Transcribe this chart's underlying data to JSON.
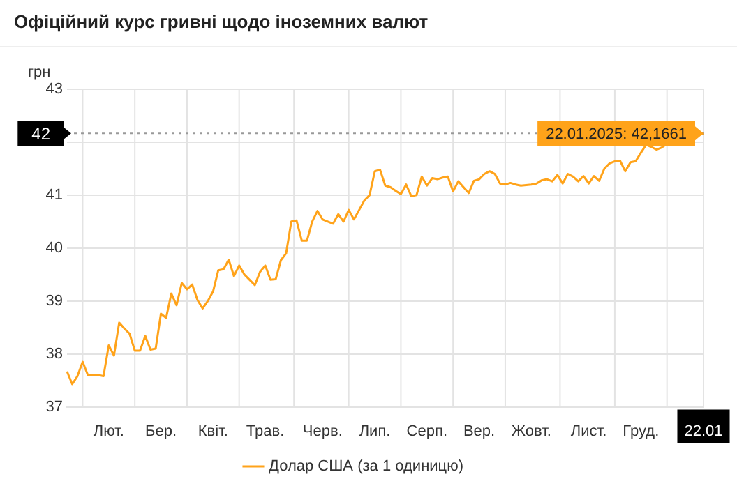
{
  "chart_data": {
    "type": "line",
    "title": "Офіційний курс гривні щодо іноземних валют",
    "ylabel": "грн",
    "categories": [
      null,
      null,
      null,
      null,
      null,
      null,
      null,
      null,
      "Лют.",
      null,
      null,
      null,
      null,
      null,
      null,
      null,
      null,
      null,
      "Бер.",
      null,
      null,
      null,
      null,
      null,
      null,
      null,
      null,
      null,
      "Квіт.",
      null,
      null,
      null,
      null,
      null,
      null,
      null,
      null,
      null,
      "Трав.",
      null,
      null,
      null,
      null,
      null,
      null,
      null,
      null,
      null,
      null,
      "Черв.",
      null,
      null,
      null,
      null,
      null,
      null,
      null,
      null,
      null,
      "Лип.",
      null,
      null,
      null,
      null,
      null,
      null,
      null,
      null,
      null,
      "Серп.",
      null,
      null,
      null,
      null,
      null,
      null,
      null,
      null,
      null,
      "Вер.",
      null,
      null,
      null,
      null,
      null,
      null,
      null,
      null,
      null,
      "Жовт.",
      null,
      null,
      null,
      null,
      null,
      null,
      null,
      null,
      null,
      null,
      "Лист.",
      null,
      null,
      null,
      null,
      null,
      null,
      null,
      null,
      null,
      "Груд.",
      null,
      null,
      null,
      null,
      null,
      null,
      null,
      null,
      null,
      null,
      null,
      "22.01"
    ],
    "series": [
      {
        "name": "Долар США (за 1 одиницю)",
        "color": "#ffa31a",
        "values": [
          37.67,
          37.43,
          37.58,
          37.85,
          37.6,
          37.6,
          37.6,
          37.58,
          38.16,
          37.97,
          38.59,
          38.48,
          38.38,
          38.06,
          38.06,
          38.34,
          38.08,
          38.1,
          38.76,
          38.68,
          39.14,
          38.92,
          39.34,
          39.22,
          39.31,
          39.02,
          38.86,
          39.0,
          39.18,
          39.58,
          39.6,
          39.78,
          39.47,
          39.67,
          39.5,
          39.4,
          39.3,
          39.55,
          39.67,
          39.4,
          39.41,
          39.77,
          39.9,
          40.5,
          40.52,
          40.14,
          40.14,
          40.5,
          40.7,
          40.54,
          40.5,
          40.46,
          40.64,
          40.5,
          40.72,
          40.54,
          40.72,
          40.9,
          41.0,
          41.45,
          41.48,
          41.18,
          41.15,
          41.08,
          41.02,
          41.2,
          40.98,
          41.0,
          41.35,
          41.18,
          41.32,
          41.3,
          41.33,
          41.35,
          41.07,
          41.26,
          41.15,
          41.04,
          41.27,
          41.3,
          41.4,
          41.45,
          41.4,
          41.22,
          41.2,
          41.23,
          41.2,
          41.18,
          41.19,
          41.2,
          41.22,
          41.28,
          41.3,
          41.26,
          41.38,
          41.22,
          41.4,
          41.35,
          41.26,
          41.36,
          41.22,
          41.36,
          41.27,
          41.5,
          41.6,
          41.64,
          41.65,
          41.45,
          41.62,
          41.64,
          41.8,
          41.95,
          41.91,
          41.86,
          41.9,
          41.97,
          null,
          null,
          null,
          null,
          null,
          null,
          42.1661
        ]
      }
    ],
    "ylim": [
      37,
      43
    ],
    "yticks": [
      37,
      38,
      39,
      40,
      41,
      42,
      43
    ],
    "ref_lines": [
      {
        "axis": "y",
        "value": 42.1661,
        "label": "42",
        "line_style": "dotted"
      }
    ],
    "annotations": [
      {
        "text": "22.01.2025: 42,1661",
        "x": "22.01",
        "y": 42.1661
      }
    ],
    "grid": true,
    "legend": "bottom",
    "marker": "none",
    "line_style": "solid"
  }
}
